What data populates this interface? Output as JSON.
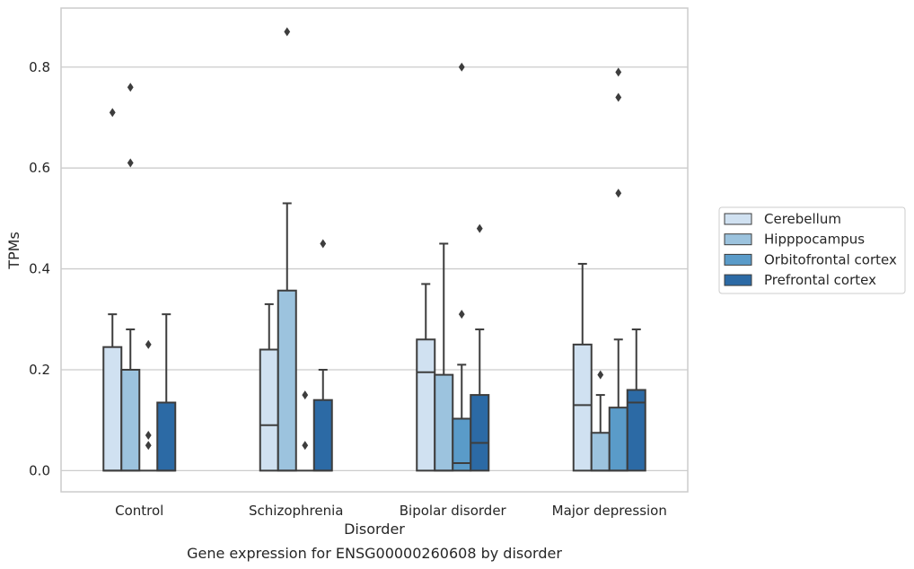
{
  "chart_data": {
    "type": "box",
    "xlabel": "Disorder",
    "ylabel": "TPMs",
    "caption": "Gene expression for ENSG00000260608 by disorder",
    "ylim": [
      -0.042,
      0.917
    ],
    "yticks": [
      0.0,
      0.2,
      0.4,
      0.6,
      0.8
    ],
    "ytick_labels": [
      "0.0",
      "0.2",
      "0.4",
      "0.6",
      "0.8"
    ],
    "grid": "horizontal",
    "legend_placement": "right",
    "categories": [
      "Control",
      "Schizophrenia",
      "Bipolar disorder",
      "Major depression"
    ],
    "series": [
      {
        "name": "Cerebellum",
        "color": "#d0e1f1",
        "boxes": [
          {
            "q1": 0.0,
            "median": 0.0,
            "q3": 0.245,
            "whislo": 0.0,
            "whishi": 0.31,
            "fliers": [
              0.71
            ]
          },
          {
            "q1": 0.0,
            "median": 0.09,
            "q3": 0.24,
            "whislo": 0.0,
            "whishi": 0.33,
            "fliers": []
          },
          {
            "q1": 0.0,
            "median": 0.195,
            "q3": 0.26,
            "whislo": 0.0,
            "whishi": 0.37,
            "fliers": []
          },
          {
            "q1": 0.0,
            "median": 0.13,
            "q3": 0.25,
            "whislo": 0.0,
            "whishi": 0.41,
            "fliers": []
          }
        ]
      },
      {
        "name": "Hipppocampus",
        "color": "#9cc3de",
        "boxes": [
          {
            "q1": 0.0,
            "median": 0.0,
            "q3": 0.2,
            "whislo": 0.0,
            "whishi": 0.28,
            "fliers": [
              0.61,
              0.76
            ]
          },
          {
            "q1": 0.0,
            "median": 0.0,
            "q3": 0.357,
            "whislo": 0.0,
            "whishi": 0.53,
            "fliers": [
              0.87
            ]
          },
          {
            "q1": 0.0,
            "median": 0.0,
            "q3": 0.19,
            "whislo": 0.0,
            "whishi": 0.45,
            "fliers": []
          },
          {
            "q1": 0.0,
            "median": 0.0,
            "q3": 0.075,
            "whislo": 0.0,
            "whishi": 0.15,
            "fliers": [
              0.19
            ]
          }
        ]
      },
      {
        "name": "Orbitofrontal cortex",
        "color": "#5a9bc9",
        "boxes": [
          {
            "q1": 0.0,
            "median": 0.0,
            "q3": 0.0,
            "whislo": 0.0,
            "whishi": 0.0,
            "fliers": [
              0.05,
              0.07,
              0.25
            ]
          },
          {
            "q1": 0.0,
            "median": 0.0,
            "q3": 0.0,
            "whislo": 0.0,
            "whishi": 0.0,
            "fliers": [
              0.05,
              0.15
            ]
          },
          {
            "q1": 0.0,
            "median": 0.015,
            "q3": 0.103,
            "whislo": 0.0,
            "whishi": 0.21,
            "fliers": [
              0.31,
              0.8
            ]
          },
          {
            "q1": 0.0,
            "median": 0.0,
            "q3": 0.125,
            "whislo": 0.0,
            "whishi": 0.26,
            "fliers": [
              0.55,
              0.74,
              0.79
            ]
          }
        ]
      },
      {
        "name": "Prefrontal cortex",
        "color": "#2c6aa5",
        "boxes": [
          {
            "q1": 0.0,
            "median": 0.0,
            "q3": 0.135,
            "whislo": 0.0,
            "whishi": 0.31,
            "fliers": []
          },
          {
            "q1": 0.0,
            "median": 0.0,
            "q3": 0.14,
            "whislo": 0.0,
            "whishi": 0.2,
            "fliers": [
              0.45
            ]
          },
          {
            "q1": 0.0,
            "median": 0.055,
            "q3": 0.15,
            "whislo": 0.0,
            "whishi": 0.28,
            "fliers": [
              0.48
            ]
          },
          {
            "q1": 0.0,
            "median": 0.135,
            "q3": 0.16,
            "whislo": 0.0,
            "whishi": 0.28,
            "fliers": []
          }
        ]
      }
    ]
  }
}
